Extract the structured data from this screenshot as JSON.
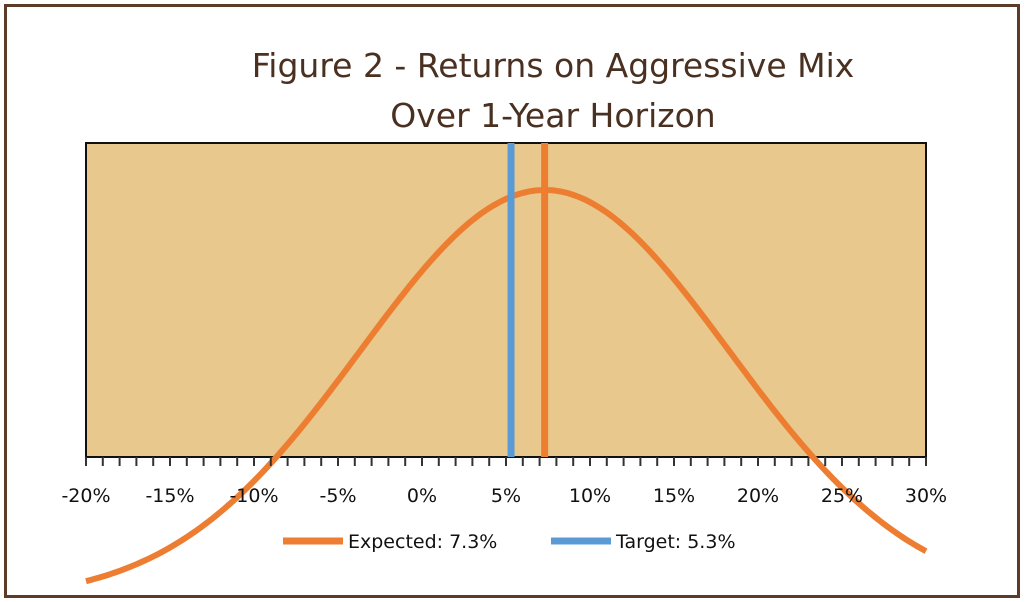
{
  "chart_data": {
    "type": "line",
    "title_lines": [
      "Figure 2 - Returns on Aggressive Mix",
      "Over 1-Year Horizon"
    ],
    "x_ticks": [
      -20,
      -15,
      -10,
      -5,
      0,
      5,
      10,
      15,
      20,
      25,
      30
    ],
    "x_tick_labels": [
      "-20%",
      "-15%",
      "-10%",
      "-5%",
      "0%",
      "5%",
      "10%",
      "15%",
      "20%",
      "25%",
      "30%"
    ],
    "xlim": [
      -20,
      30
    ],
    "x_minor_step": 1,
    "distribution": {
      "mean": 7.3,
      "std_dev": 11.0
    },
    "series": [
      {
        "name": "Expected: 7.3%",
        "x": 7.3,
        "color": "#ed7d31",
        "kind": "vline"
      },
      {
        "name": "Target: 5.3%",
        "x": 5.3,
        "color": "#5b9bd5",
        "kind": "vline"
      }
    ],
    "curve_color": "#ed7d31",
    "plot_background": "#e8c88c",
    "y_axis_shown": false,
    "grid": false,
    "legend_position": "bottom-center"
  }
}
